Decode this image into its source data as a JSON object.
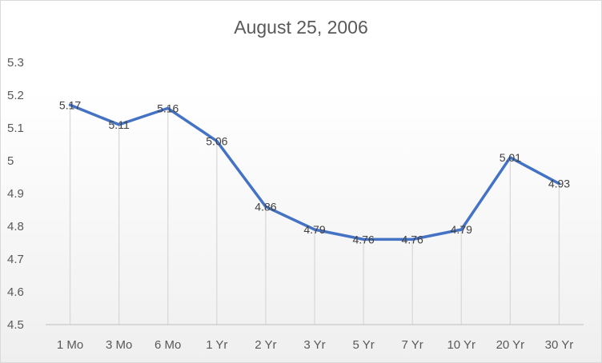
{
  "chart_data": {
    "type": "line",
    "title": "August 25, 2006",
    "xlabel": "",
    "ylabel": "",
    "categories": [
      "1 Mo",
      "3 Mo",
      "6 Mo",
      "1 Yr",
      "2 Yr",
      "3 Yr",
      "5 Yr",
      "7 Yr",
      "10 Yr",
      "20 Yr",
      "30 Yr"
    ],
    "series": [
      {
        "values": [
          5.17,
          5.11,
          5.16,
          5.06,
          4.86,
          4.79,
          4.76,
          4.76,
          4.79,
          5.01,
          4.93
        ]
      }
    ],
    "ylim": [
      4.5,
      5.3
    ],
    "yticks": [
      4.5,
      4.6,
      4.7,
      4.8,
      4.9,
      5,
      5.1,
      5.2,
      5.3
    ],
    "ytick_labels": [
      "4.5",
      "4.6",
      "4.7",
      "4.8",
      "4.9",
      "5",
      "5.1",
      "5.2",
      "5.3"
    ],
    "data_labels": [
      "5.17",
      "5.11",
      "5.16",
      "5.06",
      "4.86",
      "4.79",
      "4.76",
      "4.76",
      "4.79",
      "5.01",
      "4.93"
    ],
    "drop_lines": true,
    "grid": false,
    "legend": "none",
    "colors": {
      "line": "#4472c4",
      "drop_line": "#d9d9d9",
      "axis": "#bfbfbf"
    }
  }
}
